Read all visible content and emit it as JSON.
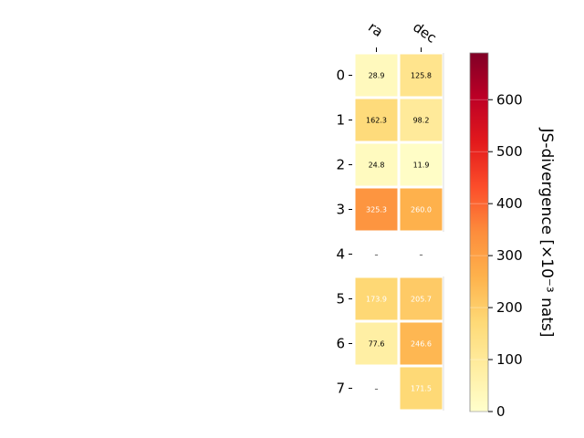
{
  "chart_data": {
    "type": "heatmap",
    "columns": [
      "ra",
      "dec"
    ],
    "rows": [
      "0",
      "1",
      "2",
      "3",
      "4",
      "5",
      "6",
      "7"
    ],
    "values": [
      [
        28.9,
        125.8
      ],
      [
        162.3,
        98.2
      ],
      [
        24.8,
        11.9
      ],
      [
        325.3,
        260.0
      ],
      [
        null,
        null
      ],
      [
        173.9,
        205.7
      ],
      [
        77.6,
        246.6
      ],
      [
        null,
        171.5
      ]
    ],
    "labels": [
      [
        "28.9",
        "125.8"
      ],
      [
        "162.3",
        "98.2"
      ],
      [
        "24.8",
        "11.9"
      ],
      [
        "325.3",
        "260.0"
      ],
      [
        "–",
        "–"
      ],
      [
        "173.9",
        "205.7"
      ],
      [
        "77.6",
        "246.6"
      ],
      [
        "–",
        "171.5"
      ]
    ],
    "colorbar": {
      "label": "JS-divergence [×10⁻³ nats]",
      "range": [
        0,
        690
      ],
      "ticks": [
        0,
        100,
        200,
        300,
        400,
        500,
        600
      ],
      "colormap": "YlOrRd"
    }
  }
}
